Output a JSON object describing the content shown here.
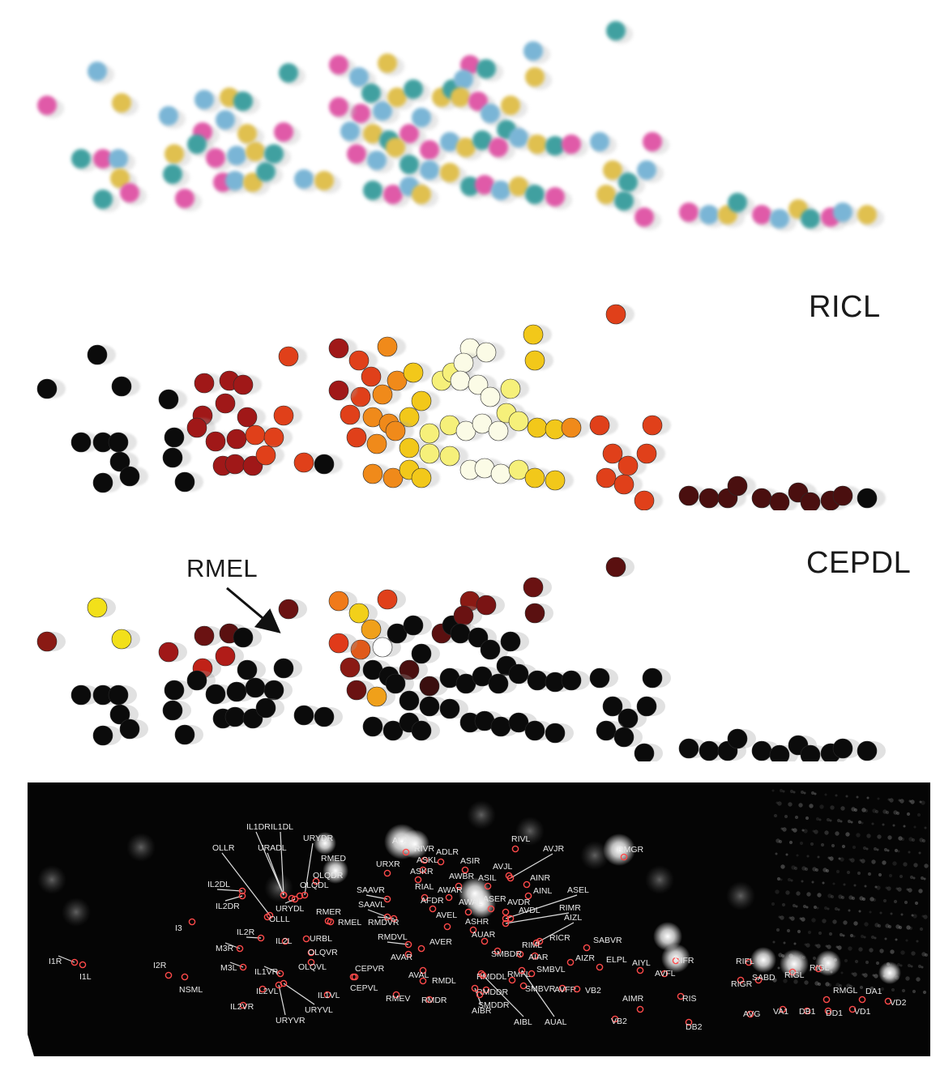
{
  "labels": {
    "ricl": "RICL",
    "cepdl": "CEPDL",
    "rmel": "RMEL"
  },
  "neuron_labels": [
    "IL1DR",
    "IL1DL",
    "URYDR",
    "OLLR",
    "URADL",
    "RMED",
    "IL2DL",
    "OLQDR",
    "OLQDL",
    "IL2DR",
    "URYDL",
    "RMER",
    "RMEL",
    "OLLL",
    "I3",
    "IL2R",
    "URBL",
    "IL2L",
    "M3R",
    "OLQVR",
    "M3L",
    "OLQVL",
    "I1R",
    "I2R",
    "I1L",
    "NSML",
    "IL1VR",
    "IL2VL",
    "IL2VR",
    "URYVL",
    "URYVR",
    "IL1VL",
    "CEPVR",
    "CEPVL",
    "ALA",
    "RIVR",
    "ADLR",
    "URXR",
    "ASKL",
    "ASIR",
    "ASKR",
    "RIVL",
    "AVJR",
    "AVJL",
    "AINR",
    "AWBR",
    "ASIL",
    "SAAVR",
    "RIAL",
    "AWAR",
    "AINL",
    "ASEL",
    "AFDR",
    "ASER",
    "AWAL",
    "AVDR",
    "SAAVL",
    "RIMR",
    "AVDL",
    "AIZL",
    "RMDVR",
    "AVEL",
    "ASHR",
    "RMDVL",
    "AUAR",
    "RICR",
    "SABVR",
    "AVER",
    "RIML",
    "AVAR",
    "AIAR",
    "AIZR",
    "ELPL",
    "AVAL",
    "SMBDR",
    "SMBVL",
    "AIYL",
    "RMDL",
    "RMDDL",
    "RIFR",
    "RMEV",
    "RMDR",
    "RMDDR",
    "SMBVR",
    "RMFL",
    "AVFR",
    "VB2",
    "AIMR",
    "AVFL",
    "RIS",
    "RIGR",
    "RIFL",
    "SABD",
    "RIGL",
    "RIGL",
    "RMGL",
    "DA1",
    "VD2",
    "AIBR",
    "SMDDR",
    "AIBL",
    "AUAL",
    "RMGR",
    "VB2",
    "DB2",
    "AVG",
    "VA1",
    "DB1",
    "DD1",
    "VD1"
  ],
  "colors": {
    "black_cells": "#0a0a0a",
    "label_text": "#1a1a1a",
    "marker_ring": "#ff4a4a",
    "leader_line": "#dddddd",
    "image_background": "#050505"
  }
}
